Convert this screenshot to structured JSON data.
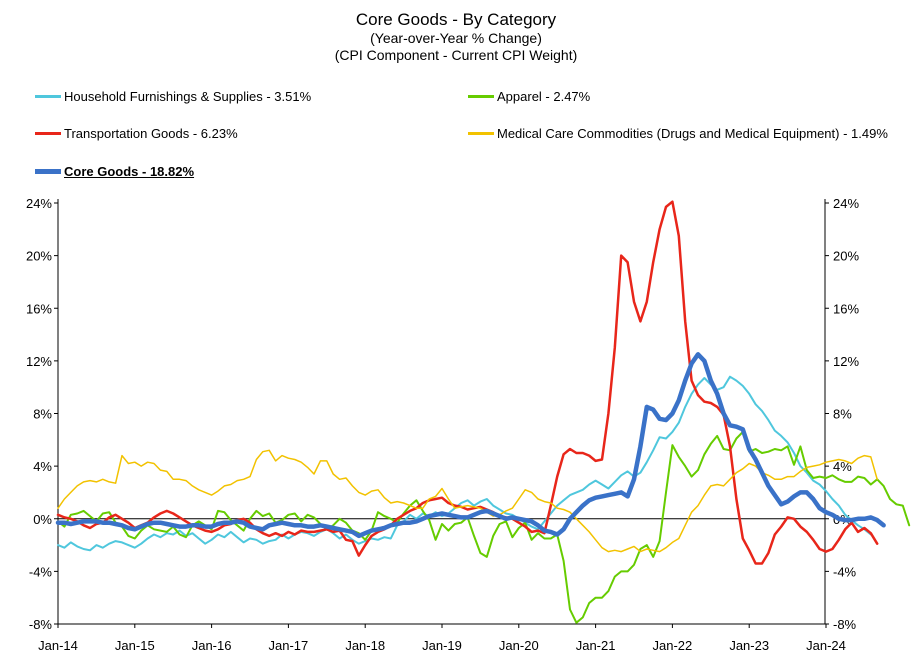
{
  "chart_data": {
    "type": "line",
    "title": "Core Goods - By Category",
    "subtitle": "(Year-over-Year % Change)",
    "subtitle2": "(CPI Component - Current CPI Weight)",
    "xlabel": "",
    "ylabel": "",
    "ylim": [
      -8,
      24
    ],
    "y_ticks": [
      "-8%",
      "-4%",
      "0%",
      "4%",
      "8%",
      "12%",
      "16%",
      "20%",
      "24%"
    ],
    "x_ticks": [
      "Jan-14",
      "Jan-15",
      "Jan-16",
      "Jan-17",
      "Jan-18",
      "Jan-19",
      "Jan-20",
      "Jan-21",
      "Jan-22",
      "Jan-23",
      "Jan-24"
    ],
    "x_start": "Jan-14",
    "x_end": "Jan-24",
    "grid": false,
    "series": [
      {
        "name": "Household Furnishings & Supplies - 3.51%",
        "color": "#4FC7DD",
        "width": 2,
        "values": [
          -2.0,
          -2.2,
          -1.8,
          -2.1,
          -2.3,
          -2.4,
          -2.0,
          -2.2,
          -1.9,
          -1.7,
          -1.8,
          -2.0,
          -2.2,
          -1.9,
          -1.5,
          -1.2,
          -1.4,
          -1.1,
          -1.2,
          -0.9,
          -1.3,
          -1.1,
          -1.5,
          -1.9,
          -1.6,
          -1.2,
          -1.4,
          -1.0,
          -1.4,
          -1.8,
          -1.5,
          -1.6,
          -1.9,
          -1.7,
          -1.6,
          -1.2,
          -1.5,
          -1.2,
          -1.0,
          -1.1,
          -1.3,
          -1.0,
          -0.8,
          -1.1,
          -1.5,
          -1.2,
          -1.6,
          -1.9,
          -1.7,
          -1.5,
          -1.6,
          -1.4,
          -1.5,
          -0.5,
          -0.2,
          0.3,
          0.0,
          0.4,
          0.2,
          0.5,
          0.2,
          0.4,
          0.8,
          1.2,
          1.4,
          1.0,
          1.3,
          1.5,
          1.0,
          0.7,
          0.4,
          0.3,
          0.0,
          -0.3,
          -0.6,
          -0.8,
          -0.2,
          0.4,
          1.0,
          1.4,
          1.8,
          2.0,
          2.2,
          2.6,
          2.9,
          2.6,
          2.3,
          2.8,
          3.3,
          3.6,
          3.2,
          3.5,
          4.3,
          5.2,
          6.2,
          6.1,
          6.6,
          7.3,
          8.5,
          9.5,
          10.2,
          10.7,
          10.2,
          9.8,
          10.0,
          10.8,
          10.5,
          10.1,
          9.5,
          8.7,
          8.2,
          7.5,
          6.7,
          6.3,
          5.8,
          5.0,
          4.0,
          3.5,
          2.9,
          2.6,
          2.1,
          1.5,
          1.0,
          0.3,
          -0.1,
          -0.5,
          -0.8,
          -1.2
        ]
      },
      {
        "name": "Apparel - 2.47%",
        "color": "#66CC00",
        "width": 2,
        "values": [
          -0.2,
          -0.6,
          0.3,
          0.4,
          0.6,
          0.2,
          -0.2,
          0.4,
          0.5,
          -0.3,
          -0.6,
          -1.3,
          -1.5,
          -0.9,
          -0.5,
          -0.8,
          -0.9,
          -1.0,
          -0.6,
          -1.2,
          -1.4,
          -0.5,
          -0.2,
          -0.5,
          -0.8,
          0.6,
          0.5,
          -0.1,
          -0.5,
          -0.9,
          0.0,
          0.6,
          0.2,
          0.4,
          -0.3,
          -0.1,
          0.3,
          0.4,
          -0.2,
          0.3,
          0.1,
          -0.4,
          -0.8,
          -0.5,
          0.0,
          -0.3,
          -0.9,
          -1.1,
          -1.6,
          -0.9,
          0.5,
          0.2,
          0.0,
          -0.3,
          0.4,
          1.0,
          1.4,
          0.6,
          -0.1,
          -1.6,
          -0.4,
          -0.9,
          -0.4,
          -0.3,
          0.1,
          -1.3,
          -2.6,
          -2.9,
          -1.3,
          -0.4,
          -0.2,
          -1.4,
          -0.7,
          -0.3,
          -1.6,
          -1.1,
          -1.5,
          -1.5,
          -1.2,
          -3.2,
          -6.9,
          -7.9,
          -7.5,
          -6.4,
          -6.0,
          -6.0,
          -5.5,
          -4.4,
          -4.0,
          -4.0,
          -3.5,
          -2.3,
          -2.0,
          -2.9,
          -1.7,
          2.0,
          5.6,
          4.7,
          4.0,
          3.2,
          3.7,
          4.9,
          5.7,
          6.3,
          5.3,
          5.2,
          6.1,
          6.6,
          5.1,
          5.3,
          5.0,
          5.1,
          5.3,
          5.2,
          5.5,
          4.1,
          5.5,
          3.7,
          3.1,
          3.2,
          3.1,
          3.3,
          3.0,
          2.8,
          2.8,
          3.2,
          3.1,
          2.6,
          3.0,
          2.5,
          1.5,
          1.1,
          1.0,
          -0.5
        ]
      },
      {
        "name": "Transportation Goods - 6.23%",
        "color": "#E8261A",
        "width": 2.5,
        "values": [
          0.3,
          0.1,
          0.0,
          -0.2,
          -0.5,
          -0.7,
          -0.4,
          -0.3,
          0.1,
          0.3,
          0.0,
          -0.3,
          -0.7,
          -0.5,
          -0.3,
          0.1,
          0.4,
          0.6,
          0.4,
          0.1,
          -0.2,
          -0.5,
          -0.7,
          -0.9,
          -1.0,
          -0.8,
          -0.5,
          -0.4,
          -0.1,
          0.0,
          -0.3,
          -0.8,
          -1.1,
          -1.3,
          -1.1,
          -1.3,
          -1.0,
          -1.2,
          -0.9,
          -1.0,
          -1.0,
          -0.9,
          -0.8,
          -1.0,
          -0.9,
          -1.6,
          -1.7,
          -2.8,
          -2.0,
          -1.3,
          -1.0,
          -0.8,
          -0.5,
          0.0,
          0.3,
          0.6,
          0.8,
          1.2,
          1.4,
          1.5,
          1.6,
          1.2,
          1.0,
          0.9,
          0.7,
          0.8,
          0.9,
          0.7,
          0.5,
          0.2,
          0.1,
          0.0,
          -0.3,
          -0.6,
          -1.0,
          -0.9,
          -1.1,
          1.0,
          3.2,
          4.9,
          5.3,
          5.0,
          5.0,
          4.8,
          4.4,
          4.5,
          8.0,
          13.0,
          20.0,
          19.5,
          16.5,
          15.0,
          16.5,
          19.5,
          22.0,
          23.7,
          24.1,
          21.5,
          15.0,
          10.5,
          9.4,
          8.9,
          8.8,
          8.5,
          7.9,
          5.5,
          1.5,
          -1.5,
          -2.4,
          -3.4,
          -3.4,
          -2.6,
          -1.2,
          -0.6,
          0.1,
          0.0,
          -0.6,
          -1.0,
          -1.6,
          -2.3,
          -2.5,
          -2.3,
          -1.6,
          -0.8,
          -0.3,
          -1.0,
          -0.7,
          -1.1,
          -1.9
        ]
      },
      {
        "name": "Medical Care Commodities (Drugs and Medical Equipment) - 1.49%",
        "color": "#F2C200",
        "width": 1.5,
        "values": [
          0.8,
          1.5,
          2.0,
          2.5,
          2.8,
          2.9,
          2.8,
          3.0,
          2.8,
          2.7,
          4.8,
          4.2,
          4.3,
          4.0,
          4.3,
          4.2,
          3.7,
          3.6,
          3.0,
          3.0,
          2.9,
          2.5,
          2.2,
          2.0,
          1.8,
          2.1,
          2.5,
          2.6,
          2.9,
          3.0,
          3.2,
          4.5,
          5.1,
          5.2,
          4.4,
          4.8,
          4.6,
          4.5,
          4.3,
          3.9,
          3.4,
          4.4,
          4.4,
          3.4,
          3.0,
          3.1,
          2.5,
          2.0,
          1.8,
          2.1,
          2.2,
          1.6,
          1.2,
          1.3,
          1.2,
          1.0,
          0.8,
          0.8,
          1.5,
          1.7,
          2.3,
          1.5,
          0.8,
          0.9,
          1.0,
          0.9,
          0.8,
          0.5,
          0.2,
          0.3,
          0.6,
          0.8,
          1.5,
          2.2,
          2.0,
          1.5,
          1.3,
          1.2,
          0.8,
          0.7,
          0.5,
          0.0,
          -0.5,
          -1.0,
          -1.6,
          -2.2,
          -2.5,
          -2.4,
          -2.5,
          -2.3,
          -2.1,
          -2.5,
          -2.3,
          -2.4,
          -2.5,
          -2.2,
          -1.8,
          -1.5,
          -0.5,
          0.5,
          1.0,
          1.8,
          2.5,
          2.6,
          2.5,
          3.0,
          3.5,
          3.8,
          4.2,
          4.0,
          3.5,
          3.3,
          3.0,
          3.0,
          3.2,
          3.2,
          3.6,
          3.9,
          4.0,
          4.1,
          4.3,
          4.4,
          4.5,
          4.4,
          4.2,
          4.6,
          4.8,
          4.7,
          3.0
        ]
      },
      {
        "name": "Core Goods - 18.82%",
        "color": "#3A72C8",
        "width": 4.5,
        "values": [
          -0.3,
          -0.3,
          -0.4,
          -0.3,
          -0.2,
          -0.2,
          -0.2,
          -0.3,
          -0.3,
          -0.4,
          -0.5,
          -0.7,
          -0.8,
          -0.6,
          -0.4,
          -0.3,
          -0.3,
          -0.4,
          -0.5,
          -0.6,
          -0.6,
          -0.5,
          -0.5,
          -0.6,
          -0.6,
          -0.4,
          -0.3,
          -0.3,
          -0.2,
          -0.3,
          -0.6,
          -0.7,
          -0.8,
          -0.5,
          -0.4,
          -0.3,
          -0.4,
          -0.5,
          -0.5,
          -0.6,
          -0.6,
          -0.5,
          -0.6,
          -0.7,
          -0.8,
          -0.9,
          -1.0,
          -1.3,
          -1.1,
          -0.9,
          -0.8,
          -0.7,
          -0.5,
          -0.4,
          -0.3,
          -0.3,
          -0.2,
          0.0,
          0.2,
          0.3,
          0.4,
          0.3,
          0.2,
          0.1,
          0.1,
          0.3,
          0.5,
          0.6,
          0.4,
          0.2,
          0.0,
          0.1,
          0.0,
          -0.1,
          -0.2,
          -0.5,
          -0.9,
          -1.0,
          -1.2,
          -0.8,
          0.0,
          0.5,
          1.0,
          1.4,
          1.6,
          1.7,
          1.8,
          1.9,
          2.0,
          1.7,
          3.0,
          5.5,
          8.5,
          8.3,
          7.6,
          7.5,
          8.0,
          9.0,
          10.5,
          11.8,
          12.5,
          12.0,
          10.5,
          9.5,
          8.0,
          7.1,
          7.0,
          6.8,
          5.3,
          4.5,
          3.5,
          2.5,
          1.8,
          1.1,
          1.3,
          1.7,
          2.0,
          2.0,
          1.5,
          0.8,
          0.5,
          0.3,
          0.0,
          -0.1,
          -0.1,
          0.0,
          0.0,
          0.1,
          -0.1,
          -0.5
        ]
      }
    ]
  }
}
